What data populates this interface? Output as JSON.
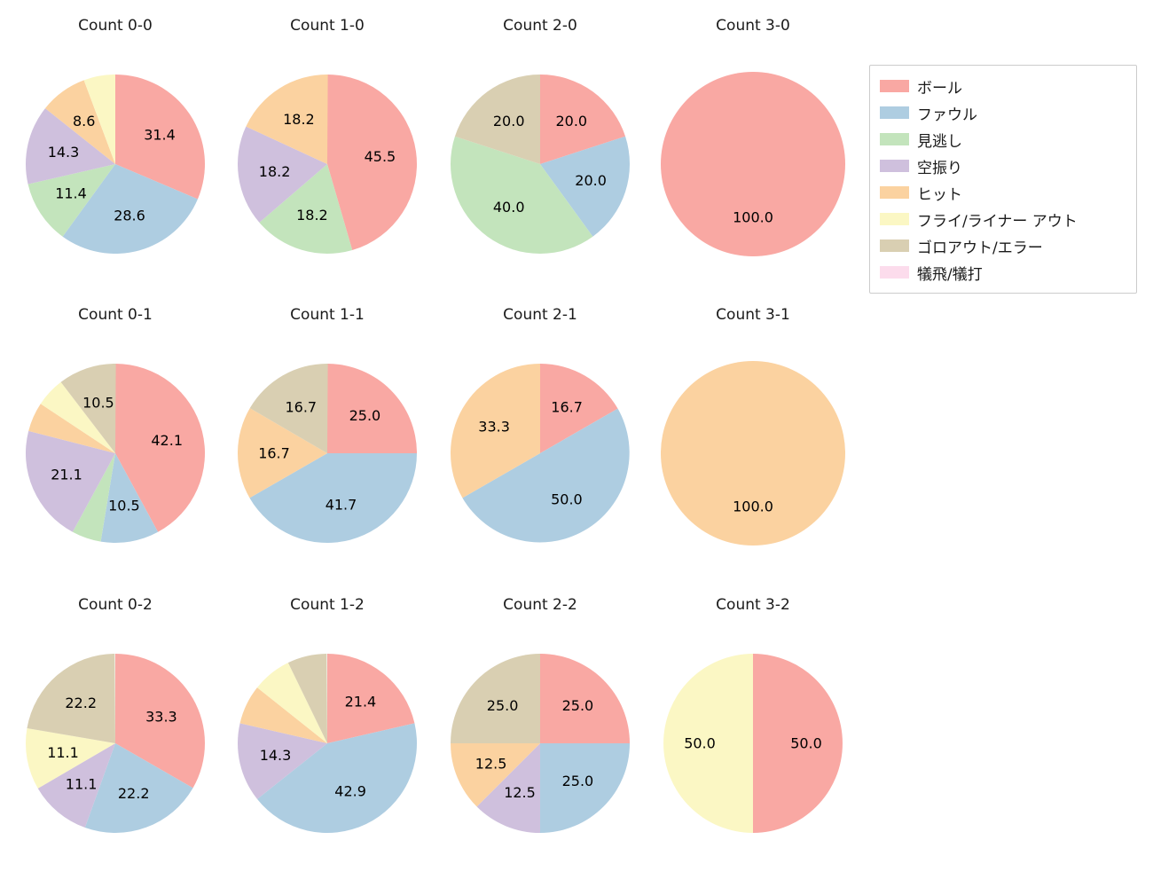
{
  "figure": {
    "background": "#ffffff"
  },
  "legend": {
    "items": [
      {
        "key": "ball",
        "label": "ボール",
        "color": "#f9a8a3"
      },
      {
        "key": "foul",
        "label": "ファウル",
        "color": "#aecde1"
      },
      {
        "key": "called-strike",
        "label": "見逃し",
        "color": "#c3e4bc"
      },
      {
        "key": "swinging-strike",
        "label": "空振り",
        "color": "#cfc0dd"
      },
      {
        "key": "hit",
        "label": "ヒット",
        "color": "#fbd2a0"
      },
      {
        "key": "fly-liner-out",
        "label": "フライ/ライナー アウト",
        "color": "#fbf7c4"
      },
      {
        "key": "groundout-error",
        "label": "ゴロアウト/エラー",
        "color": "#d9cfb2"
      },
      {
        "key": "sacrifice",
        "label": "犠飛/犠打",
        "color": "#fcdcec"
      }
    ]
  },
  "chart_data": [
    {
      "type": "pie",
      "title": "Count 0-0",
      "start_angle": 90,
      "direction": "clockwise",
      "unit": "percent",
      "slices": [
        {
          "key": "ball",
          "value": 31.4,
          "label": "31.4"
        },
        {
          "key": "foul",
          "value": 28.6,
          "label": "28.6"
        },
        {
          "key": "called-strike",
          "value": 11.4,
          "label": "11.4"
        },
        {
          "key": "swinging-strike",
          "value": 14.3,
          "label": "14.3"
        },
        {
          "key": "hit",
          "value": 8.6,
          "label": "8.6"
        },
        {
          "key": "fly-liner-out",
          "value": 5.7,
          "label": ""
        }
      ]
    },
    {
      "type": "pie",
      "title": "Count 1-0",
      "start_angle": 90,
      "direction": "clockwise",
      "unit": "percent",
      "slices": [
        {
          "key": "ball",
          "value": 45.5,
          "label": "45.5"
        },
        {
          "key": "called-strike",
          "value": 18.2,
          "label": "18.2"
        },
        {
          "key": "swinging-strike",
          "value": 18.2,
          "label": "18.2"
        },
        {
          "key": "hit",
          "value": 18.2,
          "label": "18.2"
        }
      ]
    },
    {
      "type": "pie",
      "title": "Count 2-0",
      "start_angle": 90,
      "direction": "clockwise",
      "unit": "percent",
      "slices": [
        {
          "key": "ball",
          "value": 20.0,
          "label": "20.0"
        },
        {
          "key": "foul",
          "value": 20.0,
          "label": "20.0"
        },
        {
          "key": "called-strike",
          "value": 40.0,
          "label": "40.0"
        },
        {
          "key": "groundout-error",
          "value": 20.0,
          "label": "20.0"
        }
      ]
    },
    {
      "type": "pie",
      "title": "Count 3-0",
      "start_angle": 90,
      "direction": "clockwise",
      "unit": "percent",
      "slices": [
        {
          "key": "ball",
          "value": 100.0,
          "label": "100.0"
        }
      ]
    },
    {
      "type": "pie",
      "title": "Count 0-1",
      "start_angle": 90,
      "direction": "clockwise",
      "unit": "percent",
      "slices": [
        {
          "key": "ball",
          "value": 42.1,
          "label": "42.1"
        },
        {
          "key": "foul",
          "value": 10.5,
          "label": "10.5"
        },
        {
          "key": "called-strike",
          "value": 5.3,
          "label": ""
        },
        {
          "key": "swinging-strike",
          "value": 21.1,
          "label": "21.1"
        },
        {
          "key": "hit",
          "value": 5.3,
          "label": ""
        },
        {
          "key": "fly-liner-out",
          "value": 5.3,
          "label": ""
        },
        {
          "key": "groundout-error",
          "value": 10.5,
          "label": "10.5"
        }
      ]
    },
    {
      "type": "pie",
      "title": "Count 1-1",
      "start_angle": 90,
      "direction": "clockwise",
      "unit": "percent",
      "slices": [
        {
          "key": "ball",
          "value": 25.0,
          "label": "25.0"
        },
        {
          "key": "foul",
          "value": 41.7,
          "label": "41.7"
        },
        {
          "key": "hit",
          "value": 16.7,
          "label": "16.7"
        },
        {
          "key": "groundout-error",
          "value": 16.7,
          "label": "16.7"
        }
      ]
    },
    {
      "type": "pie",
      "title": "Count 2-1",
      "start_angle": 90,
      "direction": "clockwise",
      "unit": "percent",
      "slices": [
        {
          "key": "ball",
          "value": 16.7,
          "label": "16.7"
        },
        {
          "key": "foul",
          "value": 50.0,
          "label": "50.0"
        },
        {
          "key": "hit",
          "value": 33.3,
          "label": "33.3"
        }
      ]
    },
    {
      "type": "pie",
      "title": "Count 3-1",
      "start_angle": 90,
      "direction": "clockwise",
      "unit": "percent",
      "slices": [
        {
          "key": "hit",
          "value": 100.0,
          "label": "100.0"
        }
      ]
    },
    {
      "type": "pie",
      "title": "Count 0-2",
      "start_angle": 90,
      "direction": "clockwise",
      "unit": "percent",
      "slices": [
        {
          "key": "ball",
          "value": 33.3,
          "label": "33.3"
        },
        {
          "key": "foul",
          "value": 22.2,
          "label": "22.2"
        },
        {
          "key": "swinging-strike",
          "value": 11.1,
          "label": "11.1"
        },
        {
          "key": "fly-liner-out",
          "value": 11.1,
          "label": "11.1"
        },
        {
          "key": "groundout-error",
          "value": 22.2,
          "label": "22.2"
        }
      ]
    },
    {
      "type": "pie",
      "title": "Count 1-2",
      "start_angle": 90,
      "direction": "clockwise",
      "unit": "percent",
      "slices": [
        {
          "key": "ball",
          "value": 21.4,
          "label": "21.4"
        },
        {
          "key": "foul",
          "value": 42.9,
          "label": "42.9"
        },
        {
          "key": "swinging-strike",
          "value": 14.3,
          "label": "14.3"
        },
        {
          "key": "hit",
          "value": 7.1,
          "label": ""
        },
        {
          "key": "fly-liner-out",
          "value": 7.1,
          "label": ""
        },
        {
          "key": "groundout-error",
          "value": 7.1,
          "label": ""
        }
      ]
    },
    {
      "type": "pie",
      "title": "Count 2-2",
      "start_angle": 90,
      "direction": "clockwise",
      "unit": "percent",
      "slices": [
        {
          "key": "ball",
          "value": 25.0,
          "label": "25.0"
        },
        {
          "key": "foul",
          "value": 25.0,
          "label": "25.0"
        },
        {
          "key": "swinging-strike",
          "value": 12.5,
          "label": "12.5"
        },
        {
          "key": "hit",
          "value": 12.5,
          "label": "12.5"
        },
        {
          "key": "groundout-error",
          "value": 25.0,
          "label": "25.0"
        }
      ]
    },
    {
      "type": "pie",
      "title": "Count 3-2",
      "start_angle": 90,
      "direction": "clockwise",
      "unit": "percent",
      "slices": [
        {
          "key": "ball",
          "value": 50.0,
          "label": "50.0"
        },
        {
          "key": "fly-liner-out",
          "value": 50.0,
          "label": "50.0"
        }
      ]
    }
  ]
}
